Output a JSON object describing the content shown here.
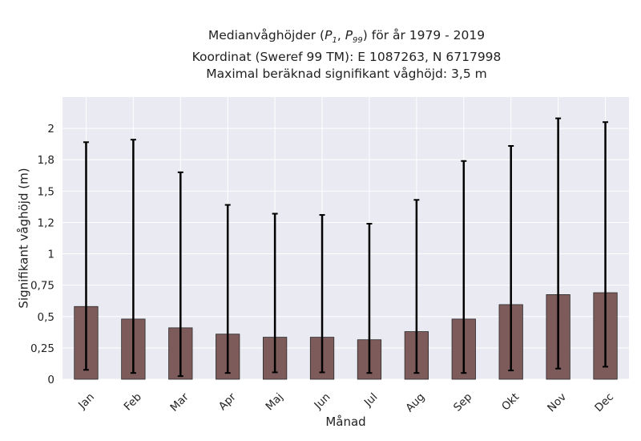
{
  "chart_data": {
    "type": "bar",
    "title_lines": [
      "Medianvåghöjder (P1, P99) för år 1979 - 2019",
      "Koordinat (Sweref 99 TM): E 1087263, N 6717998",
      "Maximal beräknad signifikant våghöjd: 3,5 m"
    ],
    "title_math": {
      "p1_base": "P",
      "p1_sub": "1",
      "p99_base": "P",
      "p99_sub": "99"
    },
    "xlabel": "Månad",
    "ylabel": "Signifikant våghöjd (m)",
    "categories": [
      "Jan",
      "Feb",
      "Mar",
      "Apr",
      "Maj",
      "Jun",
      "Jul",
      "Aug",
      "Sep",
      "Okt",
      "Nov",
      "Dec"
    ],
    "series": [
      {
        "values": [
          0.58,
          0.48,
          0.41,
          0.36,
          0.335,
          0.335,
          0.315,
          0.38,
          0.48,
          0.595,
          0.675,
          0.69
        ],
        "error_low": [
          0.075,
          0.05,
          0.025,
          0.05,
          0.055,
          0.055,
          0.05,
          0.05,
          0.05,
          0.07,
          0.085,
          0.1
        ],
        "error_high": [
          1.89,
          1.91,
          1.65,
          1.39,
          1.32,
          1.31,
          1.24,
          1.43,
          1.74,
          1.86,
          2.08,
          2.05
        ]
      }
    ],
    "yticks": [
      0,
      0.25,
      0.5,
      0.75,
      1,
      1.25,
      1.5,
      1.75,
      2
    ],
    "ytick_labels": [
      "0",
      "0,25",
      "0,5",
      "0,75",
      "1",
      "1,2",
      "1,5",
      "1,8",
      "2"
    ],
    "ylim": [
      0,
      2.25
    ],
    "grid": true,
    "legend": "none",
    "colors": {
      "bar": "#7d5b5b",
      "bar_edge": "#2b2b2b",
      "errorbar": "#000000",
      "plot_bg": "#eaeaf2",
      "grid": "#ffffff"
    }
  }
}
